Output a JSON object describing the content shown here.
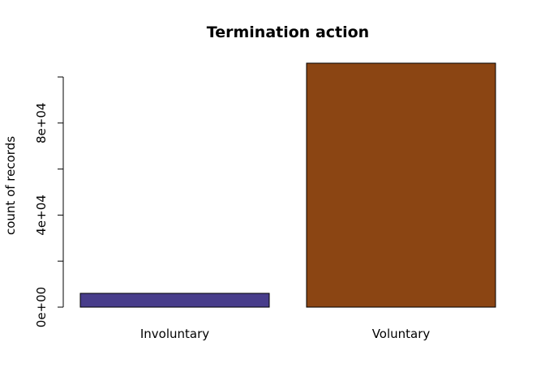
{
  "chart_data": {
    "type": "bar",
    "title": "Termination action",
    "xlabel": "",
    "ylabel": "count of records",
    "categories": [
      "Involuntary",
      "Voluntary"
    ],
    "values": [
      6000,
      106000
    ],
    "colors": [
      "#483D8B",
      "#8B4513"
    ],
    "ylim": [
      0,
      100000
    ],
    "y_ticks": [
      0,
      20000,
      40000,
      60000,
      80000,
      100000
    ],
    "y_tick_labels": [
      {
        "value": 0,
        "label": "0e+00"
      },
      {
        "value": 40000,
        "label": "4e+04"
      },
      {
        "value": 80000,
        "label": "8e+04"
      }
    ],
    "grid": false,
    "legend": "none"
  }
}
